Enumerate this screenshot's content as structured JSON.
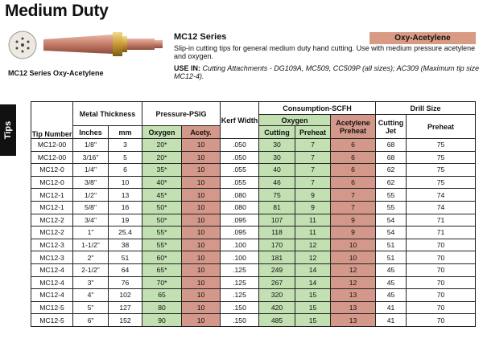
{
  "page": {
    "title": "Medium Duty",
    "side_tab": "Tips"
  },
  "product": {
    "image_caption": "MC12 Series Oxy-Acetylene",
    "series": "MC12 Series",
    "description": "Slip-in cutting tips for general medium duty hand cutting. Use with medium pressure acetylene and oxygen.",
    "use_in_label": "USE IN:",
    "use_in_text": "Cutting Attachments - DG109A, MC509, CC509P (all sizes); AC309 (Maximum tip size MC12-4).",
    "gas_type": "Oxy-Acetylene"
  },
  "table": {
    "headers": {
      "tip_number": "Tip Number",
      "metal_thickness": "Metal Thickness",
      "inches": "Inches",
      "mm": "mm",
      "pressure": "Pressure-PSIG",
      "oxygen": "Oxygen",
      "acety": "Acety.",
      "kerf": "Kerf Width",
      "consumption": "Consumption-SCFH",
      "consumption_oxygen": "Oxygen",
      "cutting": "Cutting",
      "preheat": "Preheat",
      "acetylene_preheat": "Acetylene Preheat",
      "drill_size": "Drill Size",
      "cutting_jet": "Cutting Jet",
      "drill_preheat": "Preheat"
    },
    "rows": [
      {
        "tip": "MC12-00",
        "inches": "1/8\"",
        "mm": "3",
        "oxy": "20*",
        "acety": "10",
        "kerf": ".050",
        "cut": "30",
        "preheat": "7",
        "acet_preheat": "6",
        "jet": "68",
        "drill_preheat": "75"
      },
      {
        "tip": "MC12-00",
        "inches": "3/16\"",
        "mm": "5",
        "oxy": "20*",
        "acety": "10",
        "kerf": ".050",
        "cut": "30",
        "preheat": "7",
        "acet_preheat": "6",
        "jet": "68",
        "drill_preheat": "75"
      },
      {
        "tip": "MC12-0",
        "inches": "1/4\"",
        "mm": "6",
        "oxy": "35*",
        "acety": "10",
        "kerf": ".055",
        "cut": "40",
        "preheat": "7",
        "acet_preheat": "6",
        "jet": "62",
        "drill_preheat": "75"
      },
      {
        "tip": "MC12-0",
        "inches": "3/8\"",
        "mm": "10",
        "oxy": "40*",
        "acety": "10",
        "kerf": ".055",
        "cut": "46",
        "preheat": "7",
        "acet_preheat": "6",
        "jet": "62",
        "drill_preheat": "75"
      },
      {
        "tip": "MC12-1",
        "inches": "1/2\"",
        "mm": "13",
        "oxy": "45*",
        "acety": "10",
        "kerf": ".080",
        "cut": "75",
        "preheat": "9",
        "acet_preheat": "7",
        "jet": "55",
        "drill_preheat": "74"
      },
      {
        "tip": "MC12-1",
        "inches": "5/8\"",
        "mm": "16",
        "oxy": "50*",
        "acety": "10",
        "kerf": ".080",
        "cut": "81",
        "preheat": "9",
        "acet_preheat": "7",
        "jet": "55",
        "drill_preheat": "74"
      },
      {
        "tip": "MC12-2",
        "inches": "3/4\"",
        "mm": "19",
        "oxy": "50*",
        "acety": "10",
        "kerf": ".095",
        "cut": "107",
        "preheat": "11",
        "acet_preheat": "9",
        "jet": "54",
        "drill_preheat": "71"
      },
      {
        "tip": "MC12-2",
        "inches": "1\"",
        "mm": "25.4",
        "oxy": "55*",
        "acety": "10",
        "kerf": ".095",
        "cut": "118",
        "preheat": "11",
        "acet_preheat": "9",
        "jet": "54",
        "drill_preheat": "71"
      },
      {
        "tip": "MC12-3",
        "inches": "1-1/2\"",
        "mm": "38",
        "oxy": "55*",
        "acety": "10",
        "kerf": ".100",
        "cut": "170",
        "preheat": "12",
        "acet_preheat": "10",
        "jet": "51",
        "drill_preheat": "70"
      },
      {
        "tip": "MC12-3",
        "inches": "2\"",
        "mm": "51",
        "oxy": "60*",
        "acety": "10",
        "kerf": ".100",
        "cut": "181",
        "preheat": "12",
        "acet_preheat": "10",
        "jet": "51",
        "drill_preheat": "70"
      },
      {
        "tip": "MC12-4",
        "inches": "2-1/2\"",
        "mm": "64",
        "oxy": "65*",
        "acety": "10",
        "kerf": ".125",
        "cut": "249",
        "preheat": "14",
        "acet_preheat": "12",
        "jet": "45",
        "drill_preheat": "70"
      },
      {
        "tip": "MC12-4",
        "inches": "3\"",
        "mm": "76",
        "oxy": "70*",
        "acety": "10",
        "kerf": ".125",
        "cut": "267",
        "preheat": "14",
        "acet_preheat": "12",
        "jet": "45",
        "drill_preheat": "70"
      },
      {
        "tip": "MC12-4",
        "inches": "4\"",
        "mm": "102",
        "oxy": "65",
        "acety": "10",
        "kerf": ".125",
        "cut": "320",
        "preheat": "15",
        "acet_preheat": "13",
        "jet": "45",
        "drill_preheat": "70"
      },
      {
        "tip": "MC12-5",
        "inches": "5\"",
        "mm": "127",
        "oxy": "80",
        "acety": "10",
        "kerf": ".150",
        "cut": "420",
        "preheat": "15",
        "acet_preheat": "13",
        "jet": "41",
        "drill_preheat": "70"
      },
      {
        "tip": "MC12-5",
        "inches": "6\"",
        "mm": "152",
        "oxy": "90",
        "acety": "10",
        "kerf": ".150",
        "cut": "485",
        "preheat": "15",
        "acet_preheat": "13",
        "jet": "41",
        "drill_preheat": "70"
      }
    ]
  },
  "colors": {
    "oxygen_fill": "#c3e0b3",
    "acetylene_fill": "#d4988a",
    "badge_fill": "#d99a84"
  }
}
